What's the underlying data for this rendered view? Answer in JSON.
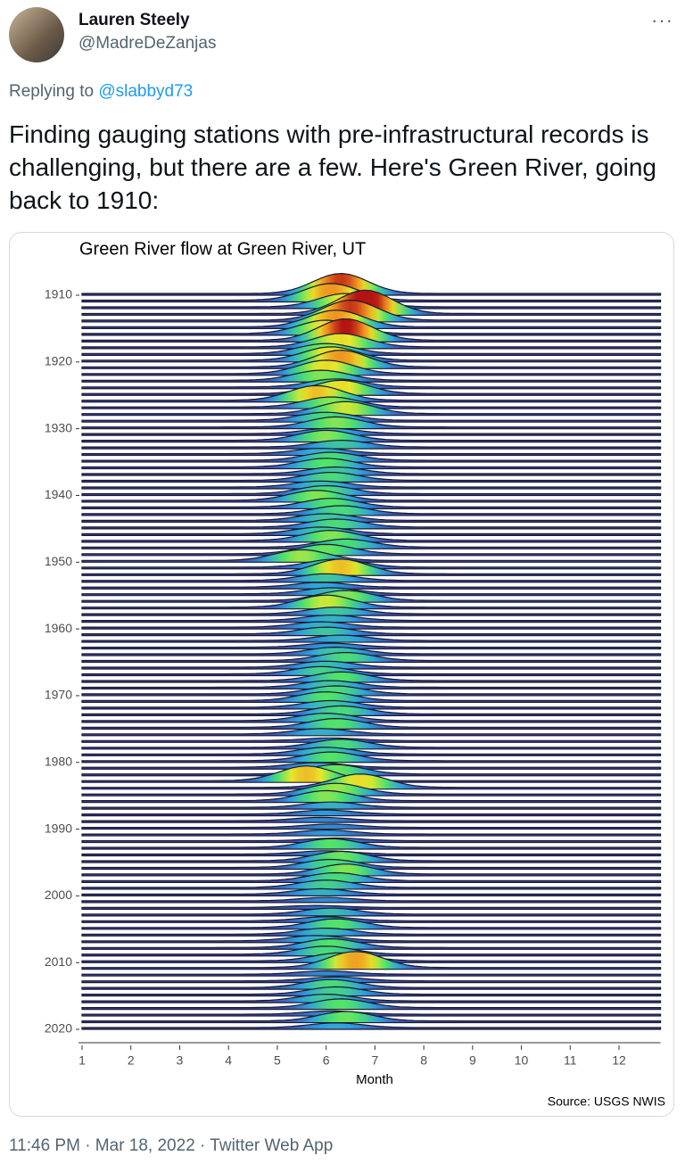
{
  "header": {
    "name": "Lauren Steely",
    "handle": "@MadreDeZanjas",
    "more": "···"
  },
  "reply": {
    "prefix": "Replying to",
    "to": "@slabbyd73"
  },
  "tweet_text": "Finding gauging stations with pre-infrastructural records is challenging, but there are a few. Here's Green River, going back to 1910:",
  "chart_data": {
    "type": "ridgeline",
    "title": "Green River flow at Green River, UT",
    "xlabel": "Month",
    "source": "Source: USGS NWIS",
    "xlim": [
      1,
      12.85
    ],
    "xticks": [
      1,
      2,
      3,
      4,
      5,
      6,
      7,
      8,
      9,
      10,
      11,
      12
    ],
    "ylim": [
      1905,
      2022
    ],
    "yticks": [
      1910,
      1920,
      1930,
      1940,
      1950,
      1960,
      1970,
      1980,
      1990,
      2000,
      2010,
      2020
    ],
    "years": [
      1910,
      1911,
      1912,
      1913,
      1914,
      1915,
      1916,
      1917,
      1918,
      1919,
      1920,
      1921,
      1922,
      1923,
      1924,
      1925,
      1926,
      1927,
      1928,
      1929,
      1930,
      1931,
      1932,
      1933,
      1934,
      1935,
      1936,
      1937,
      1938,
      1939,
      1940,
      1941,
      1942,
      1943,
      1944,
      1945,
      1946,
      1947,
      1948,
      1949,
      1950,
      1951,
      1952,
      1953,
      1954,
      1955,
      1956,
      1957,
      1958,
      1959,
      1960,
      1961,
      1962,
      1963,
      1964,
      1965,
      1966,
      1967,
      1968,
      1969,
      1970,
      1971,
      1972,
      1973,
      1974,
      1975,
      1976,
      1977,
      1978,
      1979,
      1980,
      1981,
      1982,
      1983,
      1984,
      1985,
      1986,
      1987,
      1988,
      1989,
      1990,
      1991,
      1992,
      1993,
      1994,
      1995,
      1996,
      1997,
      1998,
      1999,
      2000,
      2001,
      2002,
      2003,
      2004,
      2005,
      2006,
      2007,
      2008,
      2009,
      2010,
      2011,
      2012,
      2013,
      2014,
      2015,
      2016,
      2017,
      2018,
      2019,
      2020
    ],
    "peak_month": [
      6.3,
      6.1,
      6.4,
      6.8,
      6.5,
      6.2,
      6.0,
      6.4,
      6.3,
      6.0,
      6.1,
      6.3,
      6.0,
      5.9,
      6.2,
      6.3,
      5.8,
      6.1,
      6.4,
      6.0,
      6.2,
      6.1,
      6.0,
      6.3,
      5.9,
      6.1,
      6.0,
      6.2,
      6.1,
      5.9,
      6.0,
      5.8,
      6.1,
      6.3,
      6.0,
      6.2,
      5.9,
      6.1,
      6.4,
      6.0,
      5.5,
      6.2,
      6.3,
      6.0,
      5.9,
      6.1,
      6.4,
      6.0,
      6.2,
      6.1,
      5.9,
      6.0,
      6.3,
      6.1,
      6.2,
      6.4,
      6.0,
      5.9,
      6.3,
      6.1,
      6.2,
      6.0,
      6.1,
      6.3,
      6.0,
      6.2,
      5.9,
      6.1,
      6.3,
      6.0,
      6.1,
      5.8,
      6.2,
      5.6,
      6.7,
      6.2,
      6.0,
      6.1,
      6.0,
      5.9,
      6.1,
      6.0,
      6.2,
      6.1,
      6.0,
      6.3,
      6.1,
      6.4,
      6.2,
      6.0,
      5.9,
      6.0,
      5.8,
      6.1,
      6.0,
      6.2,
      6.0,
      5.8,
      6.1,
      6.0,
      6.3,
      6.6,
      6.0,
      6.2,
      6.1,
      6.2,
      6.0,
      6.3,
      6.1,
      6.4,
      6.2
    ],
    "peak_height": [
      3,
      2.5,
      2,
      3.5,
      3,
      2.5,
      2,
      3.2,
      2,
      1.5,
      2,
      2.5,
      2,
      1.5,
      1.2,
      2,
      2.2,
      1.5,
      1.8,
      1.2,
      1.5,
      0.8,
      1.5,
      1,
      0.8,
      1.2,
      1.3,
      1,
      1.2,
      0.9,
      1.2,
      1.5,
      1.3,
      1.2,
      1,
      1.2,
      1,
      1.5,
      1.2,
      1.4,
      1.6,
      1.2,
      2.2,
      1,
      0.7,
      0.9,
      1.5,
      1.8,
      1,
      0.8,
      0.8,
      1,
      0.8,
      0.6,
      1,
      1.2,
      0.9,
      1.1,
      1.3,
      1,
      1.2,
      1.3,
      1,
      1.2,
      1.1,
      1.3,
      0.8,
      0.4,
      1.2,
      1,
      1.3,
      0.7,
      1.4,
      2.2,
      2,
      1.6,
      1.5,
      0.8,
      0.6,
      0.5,
      0.5,
      0.6,
      0.4,
      1.3,
      0.5,
      1.4,
      1.2,
      1.5,
      1.2,
      1.1,
      0.8,
      0.5,
      0.3,
      0.9,
      0.6,
      1.3,
      0.9,
      0.8,
      1.3,
      1.2,
      1.2,
      2.4,
      0.5,
      0.6,
      1.2,
      1.1,
      1,
      1.3,
      0.5,
      1.4,
      0.7
    ]
  },
  "footer": "11:46 PM · Mar 18, 2022 · Twitter Web App"
}
